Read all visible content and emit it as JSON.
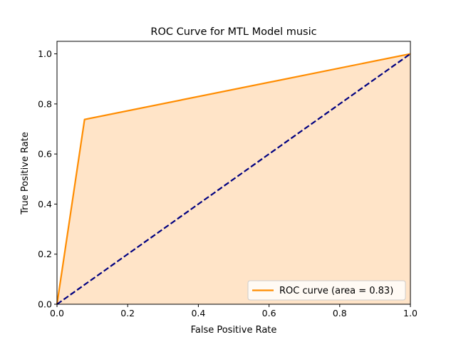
{
  "chart_data": {
    "type": "area",
    "title": "ROC Curve for MTL Model music",
    "xlabel": "False Positive Rate",
    "ylabel": "True Positive Rate",
    "xlim": [
      0.0,
      1.0
    ],
    "ylim": [
      0.0,
      1.05
    ],
    "xticks": [
      0.0,
      0.2,
      0.4,
      0.6,
      0.8,
      1.0
    ],
    "yticks": [
      0.0,
      0.2,
      0.4,
      0.6,
      0.8,
      1.0
    ],
    "xtick_labels": [
      "0.0",
      "0.2",
      "0.4",
      "0.6",
      "0.8",
      "1.0"
    ],
    "ytick_labels": [
      "0.0",
      "0.2",
      "0.4",
      "0.6",
      "0.8",
      "1.0"
    ],
    "grid": false,
    "legend_position": "lower right",
    "series": [
      {
        "name": "ROC curve (area = 0.83)",
        "style": "solid line with filled area below",
        "color": "#ff8c00",
        "fill_color": "#ffe4c8",
        "x": [
          0.0,
          0.078,
          1.0
        ],
        "y": [
          0.0,
          0.738,
          1.0
        ]
      },
      {
        "style": "dashed diagonal",
        "color": "#000080",
        "x": [
          0.0,
          1.0
        ],
        "y": [
          0.0,
          1.0
        ]
      }
    ]
  }
}
